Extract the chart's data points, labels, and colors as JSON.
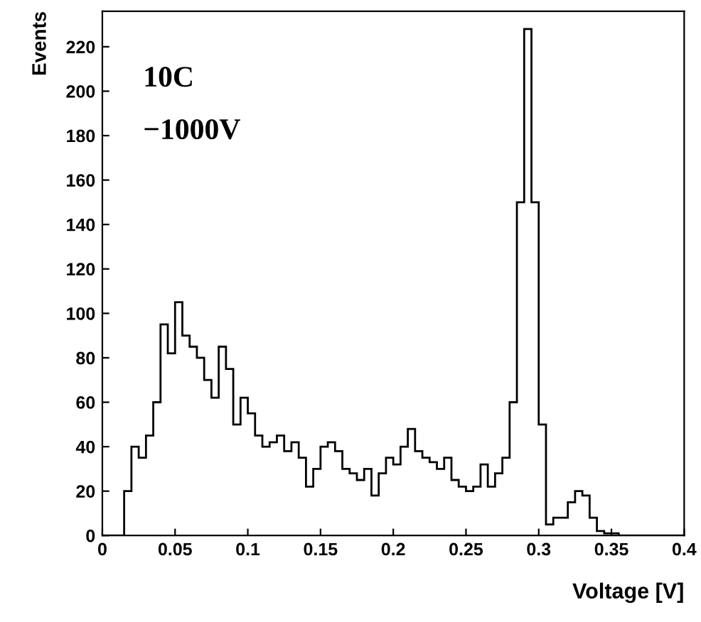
{
  "chart_data": {
    "type": "histogram",
    "xlabel": "Voltage [V]",
    "ylabel": "Events",
    "annotations": [
      "10C",
      "−1000V"
    ],
    "color": "#000000",
    "grid": false,
    "legend": false,
    "bins": [
      0,
      0.005,
      0.01,
      0.015,
      0.02,
      0.025,
      0.03,
      0.035,
      0.04,
      0.045,
      0.05,
      0.055,
      0.06,
      0.065,
      0.07,
      0.075,
      0.08,
      0.085,
      0.09,
      0.095,
      0.1,
      0.105,
      0.11,
      0.115,
      0.12,
      0.125,
      0.13,
      0.135,
      0.14,
      0.145,
      0.15,
      0.155,
      0.16,
      0.165,
      0.17,
      0.175,
      0.18,
      0.185,
      0.19,
      0.195,
      0.2,
      0.205,
      0.21,
      0.215,
      0.22,
      0.225,
      0.23,
      0.235,
      0.24,
      0.245,
      0.25,
      0.255,
      0.26,
      0.265,
      0.27,
      0.275,
      0.28,
      0.285,
      0.29,
      0.295,
      0.3,
      0.305,
      0.31,
      0.315,
      0.32,
      0.325,
      0.33,
      0.335,
      0.34,
      0.345,
      0.35,
      0.355,
      0.36,
      0.365,
      0.37,
      0.375,
      0.38,
      0.385,
      0.39,
      0.395,
      0.4
    ],
    "values": [
      0,
      0,
      0,
      20,
      40,
      35,
      45,
      60,
      95,
      82,
      105,
      90,
      85,
      80,
      70,
      62,
      85,
      75,
      50,
      62,
      55,
      45,
      40,
      42,
      45,
      38,
      42,
      35,
      22,
      30,
      40,
      42,
      38,
      30,
      28,
      25,
      30,
      18,
      28,
      35,
      32,
      40,
      48,
      38,
      35,
      33,
      30,
      35,
      25,
      22,
      20,
      22,
      32,
      22,
      28,
      35,
      60,
      150,
      228,
      150,
      50,
      5,
      8,
      8,
      15,
      20,
      18,
      8,
      2,
      1,
      1,
      0,
      0,
      0,
      0,
      0,
      0,
      0,
      0,
      0
    ],
    "xlim": [
      0,
      0.4
    ],
    "ylim": [
      0,
      236
    ],
    "xticks": [
      0,
      0.05,
      0.1,
      0.15,
      0.2,
      0.25,
      0.3,
      0.35,
      0.4
    ],
    "yticks": [
      0,
      20,
      40,
      60,
      80,
      100,
      120,
      140,
      160,
      180,
      200,
      220
    ]
  }
}
